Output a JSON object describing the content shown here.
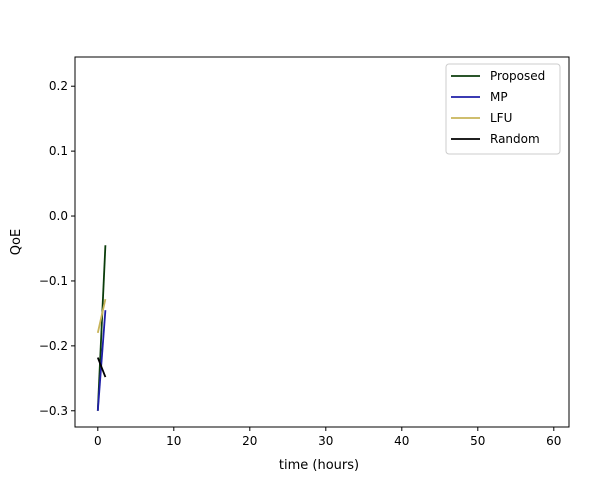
{
  "chart_data": {
    "type": "line",
    "title": "",
    "xlabel": "time (hours)",
    "ylabel": "QoE",
    "xlim": [
      -3,
      62
    ],
    "ylim": [
      -0.325,
      0.245
    ],
    "x_ticks": [
      0,
      10,
      20,
      30,
      40,
      50,
      60
    ],
    "y_ticks": [
      -0.3,
      -0.2,
      -0.1,
      0.0,
      0.1,
      0.2
    ],
    "x_tick_labels": [
      "0",
      "10",
      "20",
      "30",
      "40",
      "50",
      "60"
    ],
    "y_tick_labels": [
      "−0.3",
      "−0.2",
      "−0.1",
      "0.0",
      "0.1",
      "0.2"
    ],
    "grid": false,
    "legend_position": "top-right",
    "series": [
      {
        "name": "Proposed",
        "color": "#0b3d0b",
        "x": [
          0,
          1
        ],
        "y": [
          -0.3,
          -0.045
        ]
      },
      {
        "name": "MP",
        "color": "#1f1fa8",
        "x": [
          0,
          1
        ],
        "y": [
          -0.3,
          -0.145
        ]
      },
      {
        "name": "LFU",
        "color": "#c8b45a",
        "x": [
          0,
          1
        ],
        "y": [
          -0.18,
          -0.128
        ]
      },
      {
        "name": "Random",
        "color": "#000000",
        "x": [
          0,
          1
        ],
        "y": [
          -0.218,
          -0.248
        ]
      }
    ]
  }
}
